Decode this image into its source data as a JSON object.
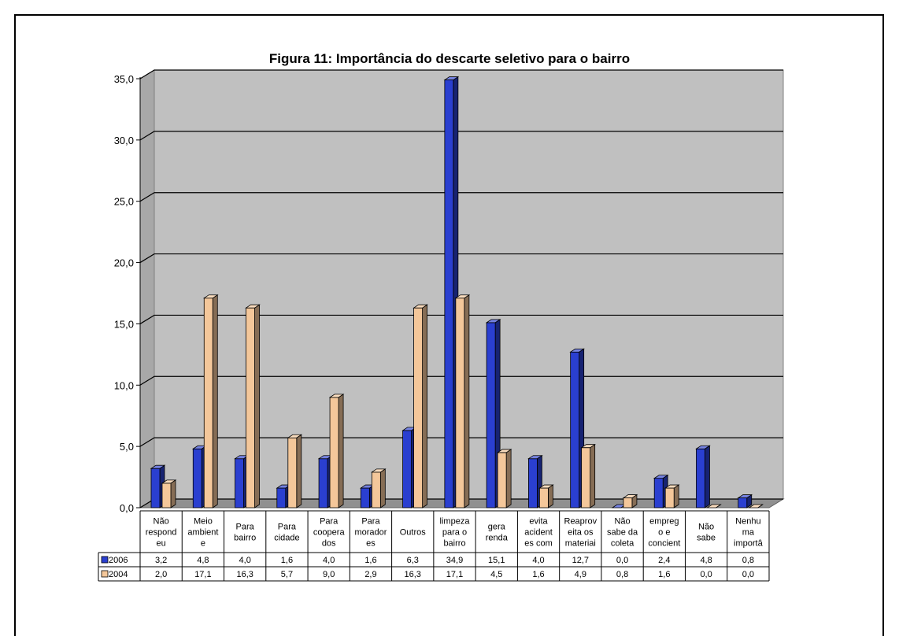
{
  "chart_data": {
    "type": "bar",
    "title": "Figura 11: Importância do descarte seletivo para o bairro",
    "ylim": [
      0,
      35
    ],
    "yticks": [
      "0,0",
      "5,0",
      "10,0",
      "15,0",
      "20,0",
      "25,0",
      "30,0",
      "35,0"
    ],
    "grid": true,
    "categories": [
      [
        "Não",
        "respond",
        "eu"
      ],
      [
        "Meio",
        "ambient",
        "e"
      ],
      [
        "Para",
        "bairro"
      ],
      [
        "Para",
        "cidade"
      ],
      [
        "Para",
        "coopera",
        "dos"
      ],
      [
        "Para",
        "morador",
        "es"
      ],
      [
        "Outros"
      ],
      [
        "limpeza",
        "para o",
        "bairro"
      ],
      [
        "gera",
        "renda"
      ],
      [
        "evita",
        "acident",
        "es com"
      ],
      [
        "Reaprov",
        "eita os",
        "materiai"
      ],
      [
        "Não",
        "sabe da",
        "coleta"
      ],
      [
        "empreg",
        "o e",
        "concient"
      ],
      [
        "Não",
        "sabe"
      ],
      [
        "Nenhu",
        "ma",
        "importâ"
      ]
    ],
    "series": [
      {
        "name": "2006",
        "color": "#2a3fd0",
        "values": [
          3.2,
          4.8,
          4.0,
          1.6,
          4.0,
          1.6,
          6.3,
          34.9,
          15.1,
          4.0,
          12.7,
          0.0,
          2.4,
          4.8,
          0.8
        ],
        "labels": [
          "3,2",
          "4,8",
          "4,0",
          "1,6",
          "4,0",
          "1,6",
          "6,3",
          "34,9",
          "15,1",
          "4,0",
          "12,7",
          "0,0",
          "2,4",
          "4,8",
          "0,8"
        ]
      },
      {
        "name": "2004",
        "color": "#f4c79a",
        "values": [
          2.0,
          17.1,
          16.3,
          5.7,
          9.0,
          2.9,
          16.3,
          17.1,
          4.5,
          1.6,
          4.9,
          0.8,
          1.6,
          0.0,
          0.0
        ],
        "labels": [
          "2,0",
          "17,1",
          "16,3",
          "5,7",
          "9,0",
          "2,9",
          "16,3",
          "17,1",
          "4,5",
          "1,6",
          "4,9",
          "0,8",
          "1,6",
          "0,0",
          "0,0"
        ]
      }
    ]
  }
}
